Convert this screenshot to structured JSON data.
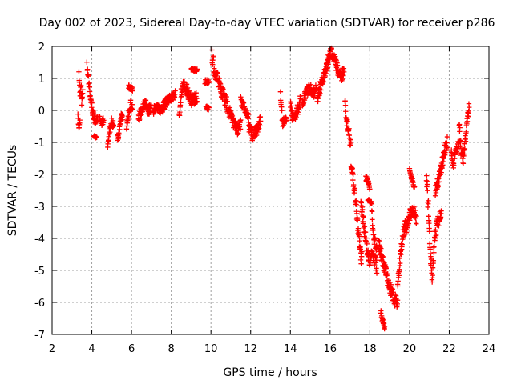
{
  "chart_data": {
    "type": "scatter",
    "title": "Day 002 of 2023, Sidereal Day-to-day VTEC variation (SDTVAR) for receiver p286",
    "xlabel": "GPS time / hours",
    "ylabel": "SDTVAR / TECUs",
    "xlim": [
      2,
      24
    ],
    "ylim": [
      -7,
      2
    ],
    "xticks": [
      2,
      4,
      6,
      8,
      10,
      12,
      14,
      16,
      18,
      20,
      22,
      24
    ],
    "yticks": [
      -7,
      -6,
      -5,
      -4,
      -3,
      -2,
      -1,
      0,
      1,
      2
    ],
    "grid": true,
    "marker": "+",
    "color": "#ff0000",
    "segments": [
      {
        "start": 3.35,
        "end": 3.55,
        "points": [
          [
            3.35,
            1.1
          ],
          [
            3.4,
            0.5
          ],
          [
            3.45,
            0.9
          ],
          [
            3.5,
            0.2
          ],
          [
            3.55,
            0.7
          ]
        ],
        "spread": 0.35
      },
      {
        "start": 3.3,
        "end": 3.4,
        "points": [
          [
            3.3,
            -0.2
          ],
          [
            3.35,
            -0.6
          ],
          [
            3.4,
            -0.3
          ]
        ],
        "spread": 0.2
      },
      {
        "start": 3.75,
        "end": 4.3,
        "points": [
          [
            3.75,
            1.4
          ],
          [
            3.85,
            0.9
          ],
          [
            3.95,
            0.3
          ],
          [
            4.05,
            -0.1
          ],
          [
            4.15,
            -0.3
          ],
          [
            4.3,
            -0.2
          ]
        ],
        "spread": 0.3
      },
      {
        "start": 4.1,
        "end": 4.25,
        "points": [
          [
            4.1,
            -0.8
          ],
          [
            4.25,
            -0.85
          ]
        ],
        "spread": 0.05
      },
      {
        "start": 4.4,
        "end": 4.6,
        "points": [
          [
            4.4,
            -0.2
          ],
          [
            4.5,
            -0.4
          ],
          [
            4.6,
            -0.3
          ]
        ],
        "spread": 0.2
      },
      {
        "start": 4.8,
        "end": 5.1,
        "points": [
          [
            4.8,
            -1.1
          ],
          [
            4.9,
            -0.6
          ],
          [
            5.0,
            -0.3
          ],
          [
            5.1,
            -0.5
          ]
        ],
        "spread": 0.25
      },
      {
        "start": 5.3,
        "end": 5.55,
        "points": [
          [
            5.3,
            -0.9
          ],
          [
            5.4,
            -0.6
          ],
          [
            5.5,
            -0.1
          ],
          [
            5.55,
            -0.3
          ]
        ],
        "spread": 0.25
      },
      {
        "start": 5.75,
        "end": 6.05,
        "points": [
          [
            5.75,
            -0.5
          ],
          [
            5.85,
            -0.1
          ],
          [
            5.95,
            0.2
          ],
          [
            6.05,
            0.0
          ]
        ],
        "spread": 0.3
      },
      {
        "start": 5.85,
        "end": 6.05,
        "points": [
          [
            5.85,
            0.75
          ],
          [
            6.05,
            0.65
          ]
        ],
        "spread": 0.15
      },
      {
        "start": 6.35,
        "end": 7.0,
        "points": [
          [
            6.35,
            -0.3
          ],
          [
            6.5,
            0.0
          ],
          [
            6.7,
            0.2
          ],
          [
            6.85,
            0.0
          ],
          [
            7.0,
            0.1
          ]
        ],
        "spread": 0.3
      },
      {
        "start": 7.1,
        "end": 7.7,
        "points": [
          [
            7.1,
            0.0
          ],
          [
            7.3,
            0.1
          ],
          [
            7.5,
            0.0
          ],
          [
            7.7,
            0.15
          ]
        ],
        "spread": 0.25
      },
      {
        "start": 7.6,
        "end": 8.2,
        "points": [
          [
            7.6,
            0.2
          ],
          [
            7.8,
            0.3
          ],
          [
            8.0,
            0.4
          ],
          [
            8.2,
            0.5
          ]
        ],
        "spread": 0.25
      },
      {
        "start": 8.4,
        "end": 9.3,
        "points": [
          [
            8.4,
            -0.1
          ],
          [
            8.5,
            0.5
          ],
          [
            8.6,
            0.9
          ],
          [
            8.8,
            0.6
          ],
          [
            9.0,
            0.3
          ],
          [
            9.2,
            0.4
          ]
        ],
        "spread": 0.4
      },
      {
        "start": 9.0,
        "end": 9.3,
        "points": [
          [
            9.0,
            1.3
          ],
          [
            9.3,
            1.25
          ]
        ],
        "spread": 0.1
      },
      {
        "start": 9.7,
        "end": 9.9,
        "points": [
          [
            9.7,
            0.9
          ],
          [
            9.9,
            0.9
          ]
        ],
        "spread": 0.15
      },
      {
        "start": 9.75,
        "end": 9.9,
        "points": [
          [
            9.75,
            0.1
          ],
          [
            9.9,
            0.05
          ]
        ],
        "spread": 0.1
      },
      {
        "start": 10.05,
        "end": 11.0,
        "points": [
          [
            10.05,
            1.7
          ],
          [
            10.2,
            1.2
          ],
          [
            10.4,
            0.9
          ],
          [
            10.6,
            0.5
          ],
          [
            10.8,
            0.2
          ],
          [
            11.0,
            -0.1
          ]
        ],
        "spread": 0.45
      },
      {
        "start": 11.0,
        "end": 11.5,
        "points": [
          [
            11.0,
            -0.2
          ],
          [
            11.2,
            -0.5
          ],
          [
            11.35,
            -0.6
          ],
          [
            11.5,
            -0.4
          ]
        ],
        "spread": 0.35
      },
      {
        "start": 11.5,
        "end": 11.9,
        "points": [
          [
            11.5,
            0.3
          ],
          [
            11.7,
            0.05
          ],
          [
            11.9,
            -0.2
          ]
        ],
        "spread": 0.25
      },
      {
        "start": 11.9,
        "end": 12.5,
        "points": [
          [
            11.9,
            -0.5
          ],
          [
            12.1,
            -0.8
          ],
          [
            12.3,
            -0.6
          ],
          [
            12.5,
            -0.3
          ]
        ],
        "spread": 0.35
      },
      {
        "start": 13.5,
        "end": 13.8,
        "points": [
          [
            13.5,
            0.5
          ],
          [
            13.6,
            -0.4
          ],
          [
            13.7,
            -0.3
          ],
          [
            13.8,
            -0.2
          ]
        ],
        "spread": 0.25
      },
      {
        "start": 14.0,
        "end": 14.5,
        "points": [
          [
            14.0,
            0.2
          ],
          [
            14.1,
            -0.2
          ],
          [
            14.3,
            -0.1
          ],
          [
            14.5,
            0.3
          ]
        ],
        "spread": 0.35
      },
      {
        "start": 14.6,
        "end": 15.3,
        "points": [
          [
            14.6,
            0.2
          ],
          [
            14.8,
            0.6
          ],
          [
            15.0,
            0.7
          ],
          [
            15.2,
            0.5
          ],
          [
            15.3,
            0.8
          ]
        ],
        "spread": 0.3
      },
      {
        "start": 15.35,
        "end": 15.9,
        "points": [
          [
            15.35,
            0.3
          ],
          [
            15.5,
            0.7
          ],
          [
            15.65,
            1.0
          ],
          [
            15.8,
            1.3
          ],
          [
            15.9,
            1.5
          ]
        ],
        "spread": 0.4
      },
      {
        "start": 15.9,
        "end": 16.7,
        "points": [
          [
            15.9,
            1.6
          ],
          [
            16.05,
            1.8
          ],
          [
            16.2,
            1.65
          ],
          [
            16.4,
            1.2
          ],
          [
            16.55,
            1.0
          ],
          [
            16.7,
            1.3
          ]
        ],
        "spread": 0.35
      },
      {
        "start": 16.75,
        "end": 17.05,
        "points": [
          [
            16.75,
            0.2
          ],
          [
            16.85,
            -0.4
          ],
          [
            16.95,
            -0.7
          ],
          [
            17.05,
            -1.1
          ]
        ],
        "spread": 0.35
      },
      {
        "start": 17.05,
        "end": 17.6,
        "points": [
          [
            17.05,
            -1.6
          ],
          [
            17.15,
            -2.1
          ],
          [
            17.25,
            -2.6
          ],
          [
            17.35,
            -3.3
          ],
          [
            17.45,
            -3.9
          ],
          [
            17.55,
            -4.6
          ]
        ],
        "spread": 0.4
      },
      {
        "start": 17.55,
        "end": 18.35,
        "points": [
          [
            17.55,
            -2.9
          ],
          [
            17.7,
            -3.6
          ],
          [
            17.85,
            -4.3
          ],
          [
            18.0,
            -4.7
          ],
          [
            18.15,
            -4.5
          ],
          [
            18.35,
            -4.9
          ]
        ],
        "spread": 0.4
      },
      {
        "start": 17.8,
        "end": 18.0,
        "points": [
          [
            17.8,
            -2.1
          ],
          [
            18.0,
            -2.4
          ]
        ],
        "spread": 0.2
      },
      {
        "start": 17.9,
        "end": 18.1,
        "points": [
          [
            17.9,
            -2.8
          ],
          [
            18.1,
            -2.9
          ]
        ],
        "spread": 0.1
      },
      {
        "start": 18.1,
        "end": 18.35,
        "points": [
          [
            18.1,
            -3.2
          ],
          [
            18.2,
            -4.0
          ],
          [
            18.35,
            -4.3
          ]
        ],
        "spread": 0.3
      },
      {
        "start": 18.55,
        "end": 18.75,
        "points": [
          [
            18.55,
            -6.3
          ],
          [
            18.65,
            -6.6
          ],
          [
            18.75,
            -6.8
          ]
        ],
        "spread": 0.15
      },
      {
        "start": 18.45,
        "end": 19.4,
        "points": [
          [
            18.45,
            -4.2
          ],
          [
            18.7,
            -4.8
          ],
          [
            18.9,
            -5.3
          ],
          [
            19.05,
            -5.6
          ],
          [
            19.2,
            -5.9
          ],
          [
            19.4,
            -6.0
          ]
        ],
        "spread": 0.4
      },
      {
        "start": 19.4,
        "end": 19.8,
        "points": [
          [
            19.4,
            -5.5
          ],
          [
            19.5,
            -4.8
          ],
          [
            19.6,
            -4.2
          ],
          [
            19.7,
            -3.8
          ],
          [
            19.8,
            -3.5
          ]
        ],
        "spread": 0.35
      },
      {
        "start": 19.8,
        "end": 20.35,
        "points": [
          [
            19.8,
            -3.8
          ],
          [
            19.95,
            -3.4
          ],
          [
            20.1,
            -3.1
          ],
          [
            20.25,
            -3.2
          ],
          [
            20.35,
            -3.4
          ]
        ],
        "spread": 0.35
      },
      {
        "start": 20.0,
        "end": 20.25,
        "points": [
          [
            20.0,
            -1.8
          ],
          [
            20.1,
            -2.1
          ],
          [
            20.25,
            -2.4
          ]
        ],
        "spread": 0.15
      },
      {
        "start": 20.85,
        "end": 21.6,
        "points": [
          [
            20.85,
            -2.1
          ],
          [
            20.95,
            -3.0
          ],
          [
            21.05,
            -4.5
          ],
          [
            21.15,
            -5.3
          ],
          [
            21.25,
            -4.0
          ],
          [
            21.4,
            -3.5
          ],
          [
            21.6,
            -3.2
          ]
        ],
        "spread": 0.45
      },
      {
        "start": 21.3,
        "end": 21.9,
        "points": [
          [
            21.3,
            -2.5
          ],
          [
            21.45,
            -2.2
          ],
          [
            21.6,
            -1.8
          ],
          [
            21.75,
            -1.3
          ],
          [
            21.9,
            -1.0
          ]
        ],
        "spread": 0.35
      },
      {
        "start": 22.1,
        "end": 22.5,
        "points": [
          [
            22.1,
            -1.2
          ],
          [
            22.2,
            -1.8
          ],
          [
            22.3,
            -1.4
          ],
          [
            22.45,
            -1.0
          ]
        ],
        "spread": 0.3
      },
      {
        "start": 22.5,
        "end": 23.0,
        "points": [
          [
            22.5,
            -0.4
          ],
          [
            22.6,
            -1.3
          ],
          [
            22.7,
            -1.6
          ],
          [
            22.8,
            -1.0
          ],
          [
            22.9,
            -0.3
          ],
          [
            23.0,
            0.1
          ]
        ],
        "spread": 0.4
      }
    ]
  }
}
